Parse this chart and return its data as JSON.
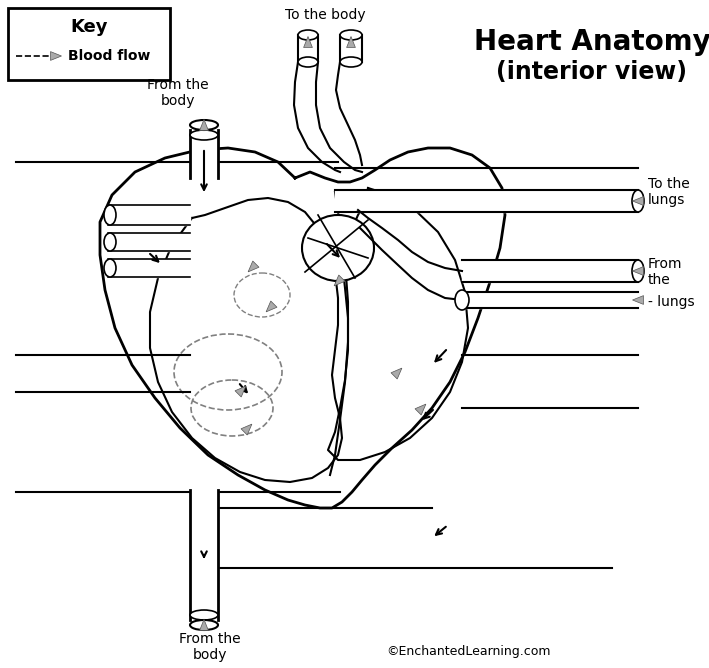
{
  "title_line1": "Heart Anatomy",
  "title_line2": "(interior view)",
  "key_title": "Key",
  "key_label": "Blood flow",
  "label_to_body_top": "To the body",
  "label_from_body_left": "From the\nbody",
  "label_to_lungs": "To the\nlungs",
  "label_from_lungs": "From\nthe\n- lungs",
  "label_from_body_bottom": "From the\nbody",
  "copyright": "©EnchantedLearning.com",
  "bg_color": "#ffffff",
  "line_color": "#000000"
}
